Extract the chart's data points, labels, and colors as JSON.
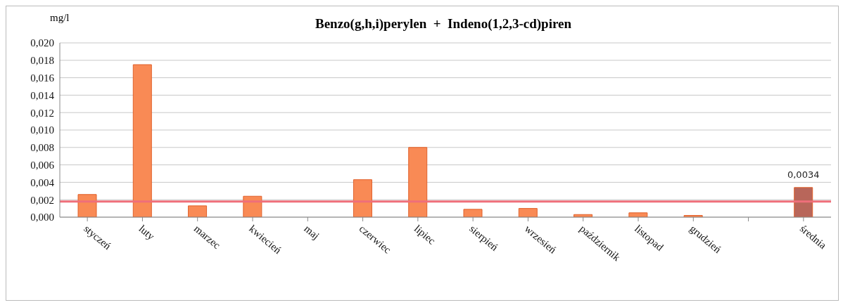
{
  "chart_data": {
    "type": "bar",
    "title": "Benzo(g,h,i)perylen  +  Indeno(1,2,3-cd)piren",
    "ylabel": "mg/l",
    "categories": [
      "styczeń",
      "luty",
      "marzec",
      "kwiecień",
      "maj",
      "czerwiec",
      "lipiec",
      "sierpień",
      "wrzesień",
      "październik",
      "listopad",
      "grudzień",
      null,
      "średnia"
    ],
    "values": [
      0.0026,
      0.0175,
      0.0013,
      0.0024,
      null,
      0.0043,
      0.008,
      0.0009,
      0.001,
      0.0003,
      0.0005,
      0.0002,
      null,
      0.0034
    ],
    "colors": [
      "#f98a55",
      "#f98a55",
      "#f98a55",
      "#f98a55",
      "#f98a55",
      "#f98a55",
      "#f98a55",
      "#f98a55",
      "#f98a55",
      "#f98a55",
      "#f98a55",
      "#f98a55",
      "#f98a55",
      "#b8665a"
    ],
    "value_labels": [
      null,
      null,
      null,
      null,
      null,
      null,
      null,
      null,
      null,
      null,
      null,
      null,
      null,
      "0,0034"
    ],
    "ylim": [
      0,
      0.02
    ],
    "yticks": [
      {
        "value": 0,
        "label": "0,000"
      },
      {
        "value": 0.002,
        "label": "0,002"
      },
      {
        "value": 0.004,
        "label": "0,004"
      },
      {
        "value": 0.006,
        "label": "0,006"
      },
      {
        "value": 0.008,
        "label": "0,008"
      },
      {
        "value": 0.01,
        "label": "0,010"
      },
      {
        "value": 0.012,
        "label": "0,012"
      },
      {
        "value": 0.014,
        "label": "0,014"
      },
      {
        "value": 0.016,
        "label": "0,016"
      },
      {
        "value": 0.018,
        "label": "0,018"
      },
      {
        "value": 0.02,
        "label": "0,020"
      }
    ],
    "ref_lines": [
      {
        "axis": "y",
        "value": 0.0018,
        "color": "#ef6f7a"
      }
    ],
    "grid": "y"
  }
}
